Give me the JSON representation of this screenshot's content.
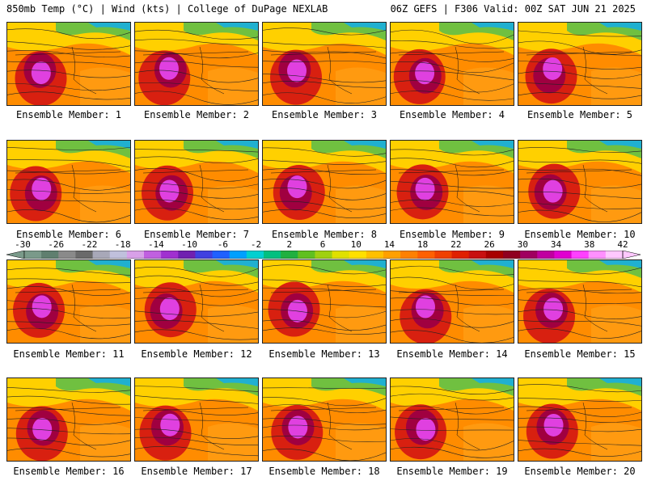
{
  "header": {
    "left": "850mb Temp (°C) | Wind (kts) | College of DuPage NEXLAB",
    "right": "06Z GEFS | F306 Valid: 00Z SAT JUN 21 2025"
  },
  "panels": [
    {
      "label": "Ensemble Member: 1"
    },
    {
      "label": "Ensemble Member: 2"
    },
    {
      "label": "Ensemble Member: 3"
    },
    {
      "label": "Ensemble Member: 4"
    },
    {
      "label": "Ensemble Member: 5"
    },
    {
      "label": "Ensemble Member: 6"
    },
    {
      "label": "Ensemble Member: 7"
    },
    {
      "label": "Ensemble Member: 8"
    },
    {
      "label": "Ensemble Member: 9"
    },
    {
      "label": "Ensemble Member: 10"
    },
    {
      "label": "Ensemble Member: 11"
    },
    {
      "label": "Ensemble Member: 12"
    },
    {
      "label": "Ensemble Member: 13"
    },
    {
      "label": "Ensemble Member: 14"
    },
    {
      "label": "Ensemble Member: 15"
    },
    {
      "label": "Ensemble Member: 16"
    },
    {
      "label": "Ensemble Member: 17"
    },
    {
      "label": "Ensemble Member: 18"
    },
    {
      "label": "Ensemble Member: 19"
    },
    {
      "label": "Ensemble Member: 20"
    }
  ],
  "colorbar": {
    "labels": [
      "-30",
      "-26",
      "-22",
      "-18",
      "-14",
      "-10",
      "-6",
      "-2",
      "2",
      "6",
      "10",
      "14",
      "18",
      "22",
      "26",
      "30",
      "34",
      "38",
      "42"
    ],
    "colors": [
      "#7a9a8a",
      "#5f7f6f",
      "#8a8a8a",
      "#6a6a6a",
      "#a8a8b8",
      "#c0c0dc",
      "#d8a0e8",
      "#c060e0",
      "#a030d0",
      "#7020b0",
      "#4040e0",
      "#2060ff",
      "#00a0ff",
      "#00d0d0",
      "#00c080",
      "#20b040",
      "#60c020",
      "#a0d010",
      "#e0e000",
      "#ffe000",
      "#ffc000",
      "#ffa000",
      "#ff8000",
      "#ff6000",
      "#f04000",
      "#e02000",
      "#c81010",
      "#a80000",
      "#900020",
      "#a00060",
      "#c000a0",
      "#e000d0",
      "#ff40ff",
      "#ff90ff",
      "#ffc8ff"
    ]
  }
}
